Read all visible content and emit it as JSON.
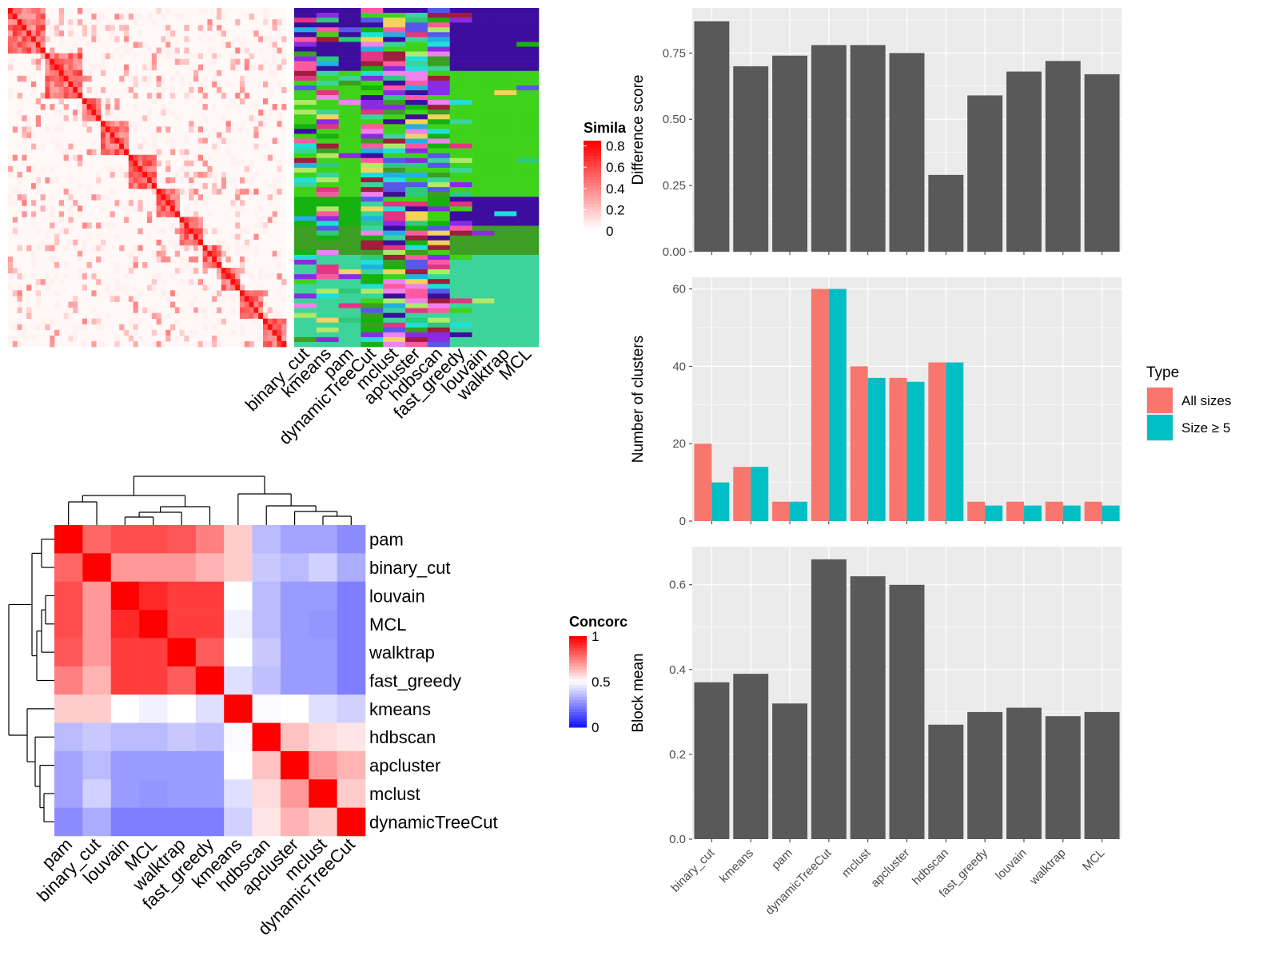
{
  "colors": {
    "panel_bg": "#ebebeb",
    "grid": "#ffffff",
    "bar": "#595959",
    "all_sizes": "#f8766d",
    "size_ge5": "#00bfc4",
    "heat_high": "#ff0000",
    "heat_mid": "#ffffff",
    "heat_low": "#0000ff"
  },
  "chart_data": [
    {
      "id": "similarity-heatmap",
      "type": "heatmap",
      "legend": {
        "title": "Simila",
        "ticks": [
          "0.8",
          "0.6",
          "0.4",
          "0.2",
          "0"
        ],
        "range": [
          0,
          0.85
        ]
      },
      "blocks": [
        [
          0,
          0.13
        ],
        [
          0.13,
          0.26
        ],
        [
          0.26,
          0.34
        ],
        [
          0.34,
          0.44
        ],
        [
          0.44,
          0.54
        ],
        [
          0.54,
          0.62
        ],
        [
          0.62,
          0.7
        ],
        [
          0.7,
          0.77
        ],
        [
          0.77,
          0.84
        ],
        [
          0.84,
          0.91
        ],
        [
          0.91,
          1.0
        ]
      ]
    },
    {
      "id": "cluster-assignments",
      "type": "heatmap",
      "methods": [
        "binary_cut",
        "kmeans",
        "pam",
        "dynamicTreeCut",
        "mclust",
        "apcluster",
        "hdbscan",
        "fast_greedy",
        "louvain",
        "walktrap",
        "MCL"
      ]
    },
    {
      "id": "concordance-heatmap",
      "type": "heatmap",
      "legend": {
        "title": "Concorc",
        "ticks": [
          "1",
          "0.5",
          "0"
        ],
        "range": [
          0,
          1
        ]
      },
      "rows": [
        "pam",
        "binary_cut",
        "louvain",
        "MCL",
        "walktrap",
        "fast_greedy",
        "kmeans",
        "hdbscan",
        "apcluster",
        "mclust",
        "dynamicTreeCut"
      ],
      "values": [
        [
          1.0,
          0.8,
          0.85,
          0.85,
          0.83,
          0.75,
          0.6,
          0.35,
          0.3,
          0.3,
          0.25
        ],
        [
          0.8,
          1.0,
          0.7,
          0.7,
          0.7,
          0.65,
          0.6,
          0.38,
          0.35,
          0.4,
          0.32
        ],
        [
          0.85,
          0.7,
          1.0,
          0.92,
          0.88,
          0.88,
          0.5,
          0.35,
          0.28,
          0.28,
          0.22
        ],
        [
          0.85,
          0.7,
          0.92,
          1.0,
          0.88,
          0.88,
          0.47,
          0.35,
          0.28,
          0.27,
          0.22
        ],
        [
          0.83,
          0.7,
          0.88,
          0.88,
          1.0,
          0.82,
          0.5,
          0.38,
          0.28,
          0.28,
          0.22
        ],
        [
          0.75,
          0.65,
          0.88,
          0.88,
          0.82,
          1.0,
          0.43,
          0.36,
          0.28,
          0.28,
          0.22
        ],
        [
          0.6,
          0.6,
          0.5,
          0.47,
          0.5,
          0.43,
          1.0,
          0.49,
          0.5,
          0.43,
          0.4
        ],
        [
          0.35,
          0.38,
          0.35,
          0.35,
          0.38,
          0.36,
          0.49,
          1.0,
          0.62,
          0.57,
          0.55
        ],
        [
          0.3,
          0.35,
          0.28,
          0.28,
          0.28,
          0.28,
          0.5,
          0.62,
          1.0,
          0.7,
          0.65
        ],
        [
          0.3,
          0.4,
          0.28,
          0.27,
          0.28,
          0.28,
          0.43,
          0.57,
          0.7,
          1.0,
          0.6
        ],
        [
          0.25,
          0.32,
          0.22,
          0.22,
          0.22,
          0.22,
          0.4,
          0.55,
          0.65,
          0.6,
          1.0
        ]
      ]
    },
    {
      "id": "difference-score",
      "type": "bar",
      "categories": [
        "binary_cut",
        "kmeans",
        "pam",
        "dynamicTreeCut",
        "mclust",
        "apcluster",
        "hdbscan",
        "fast_greedy",
        "louvain",
        "walktrap",
        "MCL"
      ],
      "values": [
        0.87,
        0.7,
        0.74,
        0.78,
        0.78,
        0.75,
        0.29,
        0.59,
        0.68,
        0.72,
        0.67
      ],
      "ylabel": "Difference score",
      "ylim": [
        0,
        0.92
      ],
      "yticks": [
        "0.00",
        "0.25",
        "0.50",
        "0.75"
      ],
      "ytick_values": [
        0,
        0.25,
        0.5,
        0.75
      ]
    },
    {
      "id": "number-of-clusters",
      "type": "bar",
      "categories": [
        "binary_cut",
        "kmeans",
        "pam",
        "dynamicTreeCut",
        "mclust",
        "apcluster",
        "hdbscan",
        "fast_greedy",
        "louvain",
        "walktrap",
        "MCL"
      ],
      "series": [
        {
          "name": "All sizes",
          "values": [
            20,
            14,
            5,
            60,
            40,
            37,
            41,
            5,
            5,
            5,
            5
          ]
        },
        {
          "name": "Size ≥ 5",
          "values": [
            10,
            14,
            5,
            60,
            37,
            36,
            41,
            4,
            4,
            4,
            4
          ]
        }
      ],
      "ylabel": "Number of clusters",
      "ylim": [
        0,
        63
      ],
      "yticks": [
        "0",
        "20",
        "40",
        "60"
      ],
      "ytick_values": [
        0,
        20,
        40,
        60
      ],
      "legend": {
        "title": "Type",
        "position": "right"
      }
    },
    {
      "id": "block-mean",
      "type": "bar",
      "categories": [
        "binary_cut",
        "kmeans",
        "pam",
        "dynamicTreeCut",
        "mclust",
        "apcluster",
        "hdbscan",
        "fast_greedy",
        "louvain",
        "walktrap",
        "MCL"
      ],
      "values": [
        0.37,
        0.39,
        0.32,
        0.66,
        0.62,
        0.6,
        0.27,
        0.3,
        0.31,
        0.29,
        0.3
      ],
      "ylabel": "Block mean",
      "ylim": [
        0,
        0.69
      ],
      "yticks": [
        "0.0",
        "0.2",
        "0.4",
        "0.6"
      ],
      "ytick_values": [
        0,
        0.2,
        0.4,
        0.6
      ]
    }
  ]
}
